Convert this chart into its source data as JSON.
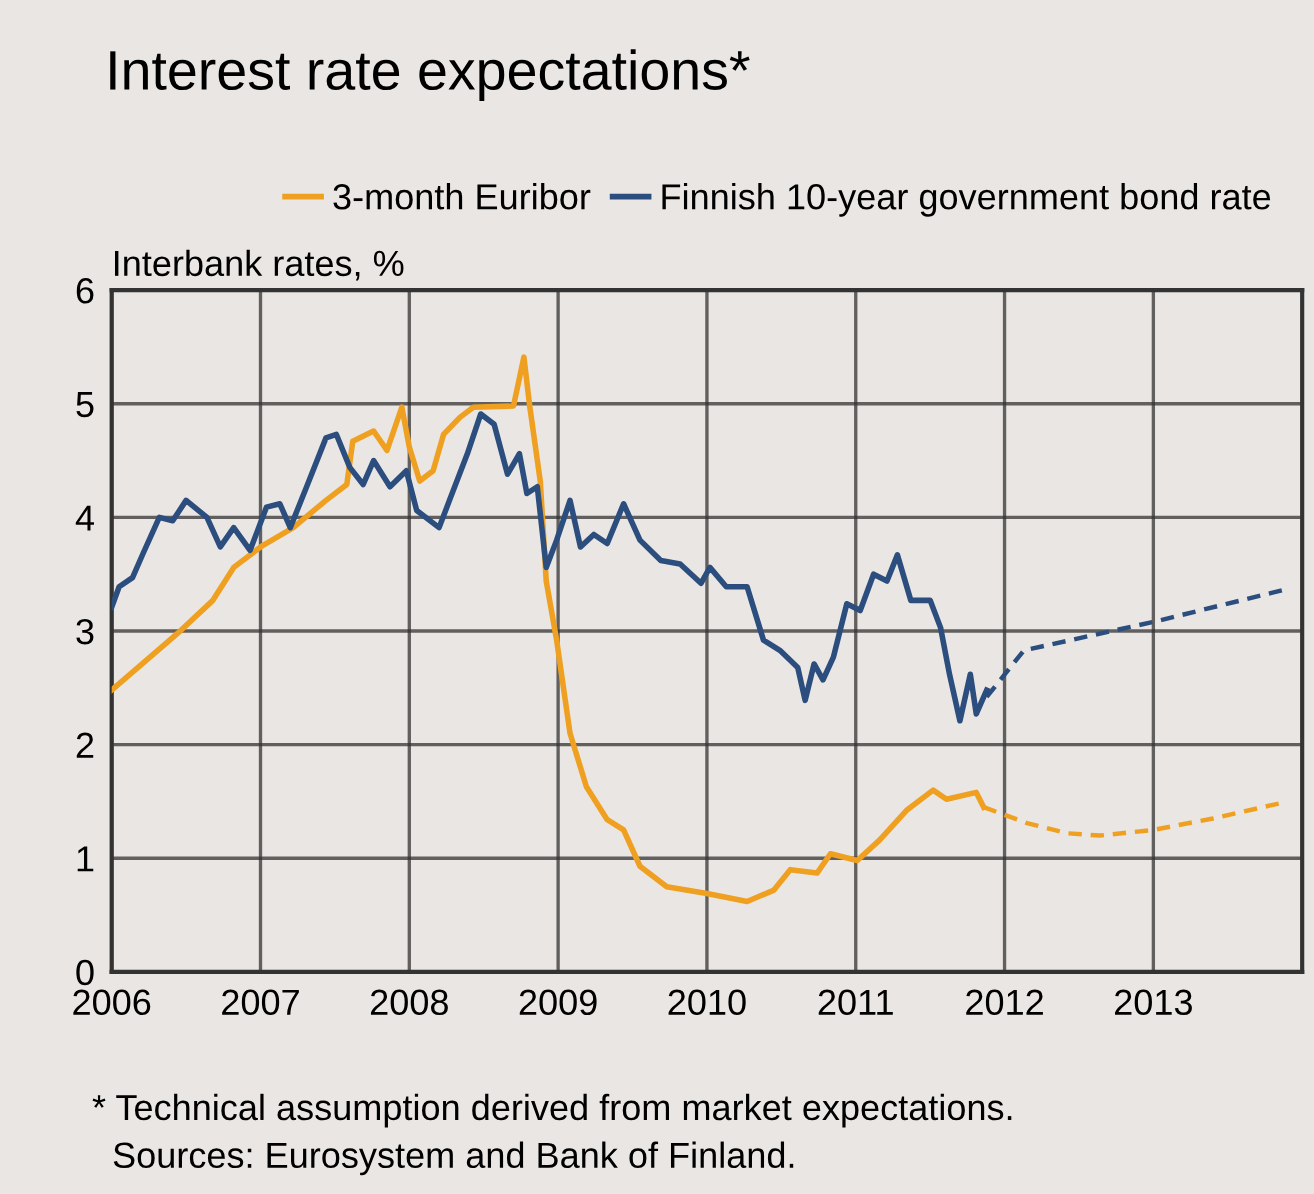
{
  "chart_data": {
    "type": "line",
    "title": "Interest rate expectations*",
    "ylabel": "Interbank rates, %",
    "xlim": [
      2006,
      2014
    ],
    "xticks": [
      2006,
      2007,
      2008,
      2009,
      2010,
      2011,
      2012,
      2013
    ],
    "ylim": [
      0,
      6
    ],
    "yticks": [
      0,
      1,
      2,
      3,
      4,
      5,
      6
    ],
    "grid": true,
    "legend": "top",
    "marker": "none",
    "series": [
      {
        "name": "3-month Euribor",
        "color": "#f0a020",
        "line_style": "solid",
        "x": [
          2006.0,
          2006.23,
          2006.46,
          2006.68,
          2006.82,
          2007.0,
          2007.22,
          2007.44,
          2007.58,
          2007.62,
          2007.76,
          2007.85,
          2007.95,
          2008.0,
          2008.07,
          2008.16,
          2008.23,
          2008.34,
          2008.43,
          2008.7,
          2008.77,
          2008.81,
          2008.88,
          2008.92,
          2008.99,
          2009.08,
          2009.19,
          2009.33,
          2009.44,
          2009.55,
          2009.73,
          2010.0,
          2010.27,
          2010.45,
          2010.56,
          2010.74,
          2010.83,
          2011.01,
          2011.16,
          2011.34,
          2011.52,
          2011.61,
          2011.81,
          2011.86
        ],
        "values": [
          2.48,
          2.74,
          3.0,
          3.27,
          3.56,
          3.74,
          3.91,
          4.15,
          4.29,
          4.67,
          4.76,
          4.59,
          4.97,
          4.62,
          4.32,
          4.41,
          4.73,
          4.88,
          4.97,
          4.98,
          5.41,
          4.97,
          4.32,
          3.44,
          2.92,
          2.1,
          1.63,
          1.34,
          1.25,
          0.93,
          0.75,
          0.69,
          0.62,
          0.72,
          0.9,
          0.87,
          1.04,
          0.98,
          1.16,
          1.42,
          1.6,
          1.52,
          1.58,
          1.45
        ]
      },
      {
        "name": "Finnish 10-year government bond rate",
        "color": "#2b4e7e",
        "line_style": "solid",
        "x": [
          2006.0,
          2006.05,
          2006.14,
          2006.21,
          2006.32,
          2006.41,
          2006.5,
          2006.64,
          2006.73,
          2006.82,
          2006.93,
          2007.04,
          2007.13,
          2007.2,
          2007.31,
          2007.44,
          2007.51,
          2007.6,
          2007.69,
          2007.76,
          2007.87,
          2007.98,
          2008.05,
          2008.2,
          2008.27,
          2008.39,
          2008.48,
          2008.57,
          2008.66,
          2008.74,
          2008.79,
          2008.86,
          2008.92,
          2008.99,
          2009.08,
          2009.15,
          2009.24,
          2009.33,
          2009.44,
          2009.55,
          2009.69,
          2009.82,
          2009.96,
          2010.02,
          2010.13,
          2010.27,
          2010.38,
          2010.49,
          2010.61,
          2010.66,
          2010.72,
          2010.78,
          2010.85,
          2010.94,
          2011.03,
          2011.12,
          2011.21,
          2011.28,
          2011.37,
          2011.5,
          2011.57,
          2011.63,
          2011.7,
          2011.77,
          2011.81,
          2011.88
        ],
        "values": [
          3.21,
          3.39,
          3.47,
          3.68,
          4.0,
          3.97,
          4.15,
          4.0,
          3.74,
          3.91,
          3.71,
          4.09,
          4.12,
          3.91,
          4.27,
          4.7,
          4.73,
          4.44,
          4.29,
          4.5,
          4.27,
          4.41,
          4.06,
          3.91,
          4.15,
          4.56,
          4.91,
          4.82,
          4.38,
          4.56,
          4.21,
          4.27,
          3.56,
          3.8,
          4.15,
          3.74,
          3.85,
          3.77,
          4.12,
          3.8,
          3.62,
          3.59,
          3.42,
          3.56,
          3.39,
          3.39,
          2.92,
          2.83,
          2.68,
          2.39,
          2.71,
          2.57,
          2.77,
          3.24,
          3.18,
          3.5,
          3.44,
          3.67,
          3.27,
          3.27,
          3.03,
          2.62,
          2.21,
          2.62,
          2.27,
          2.48
        ]
      },
      {
        "color": "#f0a020",
        "line_style": "dashed",
        "x": [
          2011.86,
          2012.15,
          2012.42,
          2012.64,
          2013.0,
          2013.4,
          2013.87
        ],
        "values": [
          1.45,
          1.31,
          1.22,
          1.2,
          1.25,
          1.35,
          1.49
        ]
      },
      {
        "color": "#2b4e7e",
        "line_style": "dashed",
        "x": [
          2011.88,
          2012.13,
          2013.0,
          2013.87
        ],
        "values": [
          2.42,
          2.83,
          3.08,
          3.36
        ]
      }
    ],
    "annotations": [
      "* Technical assumption derived from market expectations.",
      "  Sources: Eurosystem and Bank of Finland."
    ]
  }
}
